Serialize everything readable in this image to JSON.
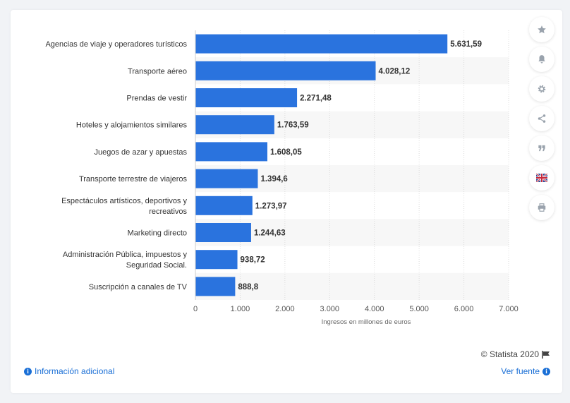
{
  "chart_data": {
    "type": "bar",
    "orientation": "horizontal",
    "categories": [
      [
        "Agencias de viaje y operadores turísticos"
      ],
      [
        "Transporte aéreo"
      ],
      [
        "Prendas de vestir"
      ],
      [
        "Hoteles y alojamientos similares"
      ],
      [
        "Juegos de azar y apuestas"
      ],
      [
        "Transporte terrestre de viajeros"
      ],
      [
        "Espectáculos artísticos, deportivos y",
        "recreativos"
      ],
      [
        "Marketing directo"
      ],
      [
        "Administración Pública, impuestos y",
        "Seguridad Social."
      ],
      [
        "Suscripción a canales de TV"
      ]
    ],
    "values": [
      5631.59,
      4028.12,
      2271.48,
      1763.59,
      1608.05,
      1394.6,
      1273.97,
      1244.63,
      938.72,
      888.8
    ],
    "value_labels": [
      "5.631,59",
      "4.028,12",
      "2.271,48",
      "1.763,59",
      "1.608,05",
      "1.394,6",
      "1.273,97",
      "1.244,63",
      "938,72",
      "888,8"
    ],
    "xlim": [
      0,
      7000
    ],
    "ticks": [
      0,
      1000,
      2000,
      3000,
      4000,
      5000,
      6000,
      7000
    ],
    "tick_labels": [
      "0",
      "1.000",
      "2.000",
      "3.000",
      "4.000",
      "5.000",
      "6.000",
      "7.000"
    ],
    "xlabel": "Ingresos en millones de euros",
    "ylabel": "",
    "title": "",
    "grid": true,
    "legend": "none",
    "bar_color": "#2a73de",
    "band_color": "#f7f7f7",
    "grid_color": "#dddddd"
  },
  "toolbar": {
    "icons": [
      "star-icon",
      "bell-icon",
      "gear-icon",
      "share-icon",
      "quote-icon",
      "flag-uk-icon",
      "print-icon"
    ]
  },
  "footer": {
    "credit": "© Statista 2020",
    "info_link": "Información adicional",
    "source_link": "Ver fuente"
  },
  "colors": {
    "link": "#1a6fd6",
    "background": "#f1f3f6",
    "card": "#ffffff"
  }
}
